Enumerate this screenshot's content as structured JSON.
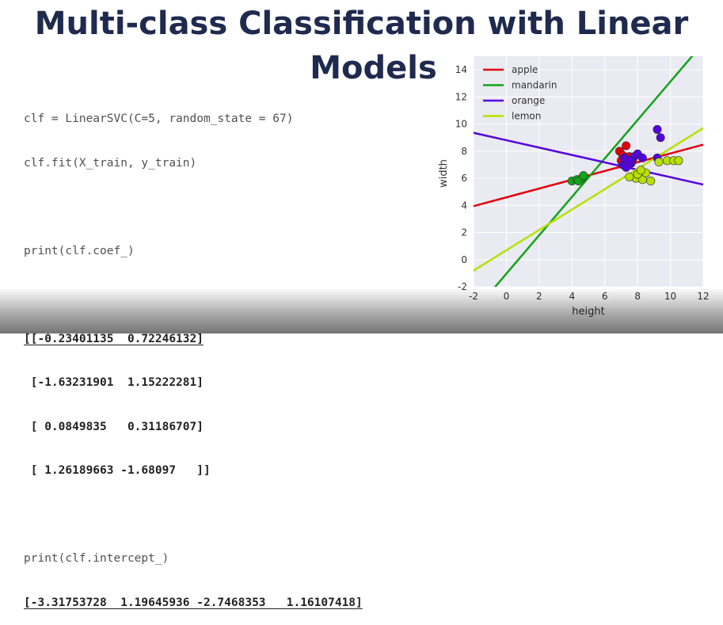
{
  "slide": {
    "title_line1": "Multi-class Classification with Linear",
    "title_line2": "Models"
  },
  "code": {
    "line1": "clf = LinearSVC(C=5, random_state = 67)",
    "line2": "clf.fit(X_train, y_train)",
    "line3": "print(clf.coef_)",
    "coef_rows": [
      "[[-0.23401135  0.72246132]",
      " [-1.63231901  1.15222281]",
      " [ 0.0849835   0.31186707]",
      " [ 1.26189663 -1.68097   ]]"
    ],
    "line4": "print(clf.intercept_)",
    "intercept": "[-3.31753728  1.19645936 -2.7468353   1.16107418]"
  },
  "colors": {
    "title": "#1f2a4f",
    "apple": "#e3000b",
    "mandarin": "#10a518",
    "orange": "#5400e0",
    "lemon": "#b8e000",
    "plot_bg": "#eaeaf2"
  },
  "chart_data": {
    "type": "scatter",
    "title": "",
    "xlabel": "height",
    "ylabel": "width",
    "xlim": [
      -2,
      12
    ],
    "ylim": [
      -2,
      15
    ],
    "xticks": [
      -2,
      0,
      2,
      4,
      6,
      8,
      10,
      12
    ],
    "yticks": [
      -2,
      0,
      2,
      4,
      6,
      8,
      10,
      12,
      14
    ],
    "grid": true,
    "legend_position": "top-left",
    "decision_lines": [
      {
        "name": "apple",
        "color": "#e3000b",
        "coef": [
          -0.23401135,
          0.72246132
        ],
        "intercept": -3.31753728
      },
      {
        "name": "mandarin",
        "color": "#10a518",
        "coef": [
          -1.63231901,
          1.15222281
        ],
        "intercept": 1.19645936
      },
      {
        "name": "orange",
        "color": "#5400e0",
        "coef": [
          0.0849835,
          0.31186707
        ],
        "intercept": -2.7468353
      },
      {
        "name": "lemon",
        "color": "#b8e000",
        "coef": [
          1.26189663,
          -1.68097
        ],
        "intercept": 1.16107418
      }
    ],
    "series": [
      {
        "name": "apple",
        "color": "#e3000b",
        "points": [
          [
            6.9,
            8.0
          ],
          [
            7.3,
            8.4
          ],
          [
            7.1,
            7.7
          ],
          [
            7.5,
            7.6
          ],
          [
            7.4,
            7.2
          ],
          [
            7.0,
            7.3
          ],
          [
            7.7,
            7.3
          ]
        ]
      },
      {
        "name": "mandarin",
        "color": "#10a518",
        "points": [
          [
            4.0,
            5.8
          ],
          [
            4.3,
            5.9
          ],
          [
            4.6,
            6.0
          ],
          [
            4.4,
            5.8
          ],
          [
            4.7,
            6.2
          ]
        ]
      },
      {
        "name": "orange",
        "color": "#5400e0",
        "points": [
          [
            9.2,
            9.6
          ],
          [
            9.4,
            9.0
          ],
          [
            7.1,
            7.0
          ],
          [
            7.2,
            7.5
          ],
          [
            7.6,
            7.1
          ],
          [
            7.8,
            7.6
          ],
          [
            8.0,
            7.8
          ],
          [
            7.3,
            6.8
          ],
          [
            7.5,
            7.3
          ],
          [
            9.2,
            7.5
          ],
          [
            8.3,
            7.5
          ]
        ]
      },
      {
        "name": "lemon",
        "color": "#b8e000",
        "points": [
          [
            9.3,
            7.2
          ],
          [
            9.8,
            7.3
          ],
          [
            10.2,
            7.3
          ],
          [
            10.5,
            7.3
          ],
          [
            7.9,
            6.0
          ],
          [
            8.3,
            5.9
          ],
          [
            7.5,
            6.1
          ],
          [
            8.5,
            6.4
          ],
          [
            8.0,
            6.3
          ],
          [
            8.8,
            5.8
          ],
          [
            8.2,
            6.6
          ]
        ]
      }
    ]
  }
}
